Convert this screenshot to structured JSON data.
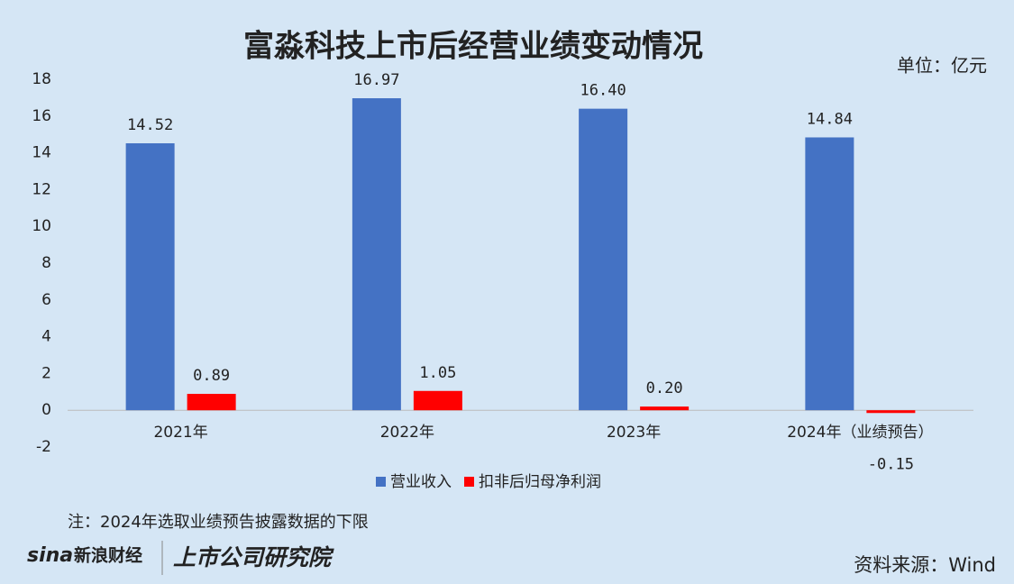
{
  "chart_data": {
    "type": "bar",
    "title": "富淼科技上市后经营业绩变动情况",
    "unit": "单位：亿元",
    "categories": [
      "2021年",
      "2022年",
      "2023年",
      "2024年（业绩预告）"
    ],
    "series": [
      {
        "name": "营业收入",
        "color": "#4472c4",
        "values": [
          14.52,
          16.97,
          16.4,
          14.84
        ],
        "value_labels": [
          "14.52",
          "16.97",
          "16.40",
          "14.84"
        ]
      },
      {
        "name": "扣非后归母净利润",
        "color": "#ff0000",
        "values": [
          0.89,
          1.05,
          0.2,
          -0.15
        ],
        "value_labels": [
          "0.89",
          "1.05",
          "0.20",
          "-0.15"
        ]
      }
    ],
    "ylim": [
      -2,
      18
    ],
    "yticks": [
      -2,
      0,
      2,
      4,
      6,
      8,
      10,
      12,
      14,
      16,
      18
    ],
    "grid": false,
    "legend": "bottom",
    "note": "注：2024年选取业绩预告披露数据的下限",
    "source": "资料来源：Wind",
    "logo": {
      "brand": "sina",
      "name": "新浪财经",
      "institute": "上市公司研究院"
    }
  }
}
